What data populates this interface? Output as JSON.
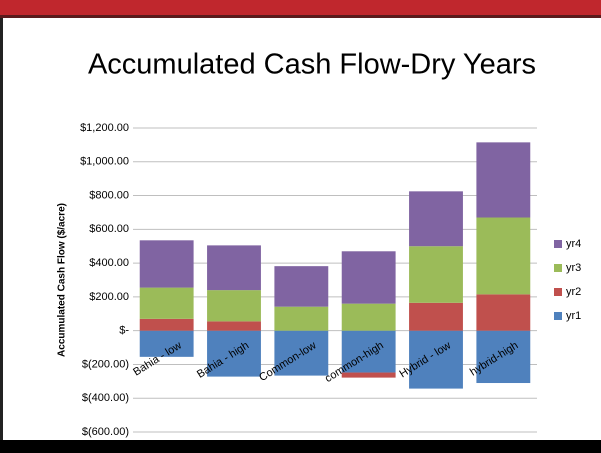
{
  "chart_data": {
    "type": "stacked_bar",
    "title": "Accumulated Cash Flow-Dry Years",
    "y_label": "Accumulated Cash Flow ($/acre)",
    "categories": [
      "Bahia - low",
      "Bahia - high",
      "Common-low",
      "common-high",
      "Hybrid - low",
      "hybrid-high"
    ],
    "series": [
      {
        "name": "yr1",
        "color": "#4f81bd",
        "values": [
          -155,
          -272,
          -266,
          -248,
          -343,
          -310
        ]
      },
      {
        "name": "yr2",
        "color": "#c0504d",
        "values": [
          70,
          55,
          0,
          -30,
          165,
          215
        ]
      },
      {
        "name": "yr3",
        "color": "#9bbb59",
        "values": [
          185,
          185,
          142,
          160,
          335,
          455
        ]
      },
      {
        "name": "yr4",
        "color": "#8064a2",
        "values": [
          280,
          265,
          240,
          310,
          325,
          445
        ]
      }
    ],
    "ylim": [
      -600,
      1200
    ],
    "yticks": [
      {
        "value": -600,
        "label": "$(600.00)"
      },
      {
        "value": -400,
        "label": "$(400.00)"
      },
      {
        "value": -200,
        "label": "$(200.00)"
      },
      {
        "value": 0,
        "label": "$-"
      },
      {
        "value": 200,
        "label": "$200.00"
      },
      {
        "value": 400,
        "label": "$400.00"
      },
      {
        "value": 600,
        "label": "$600.00"
      },
      {
        "value": 800,
        "label": "$800.00"
      },
      {
        "value": 1000,
        "label": "$1,000.00"
      },
      {
        "value": 1200,
        "label": "$1,200.00"
      }
    ],
    "grid": true,
    "legend": "right"
  }
}
